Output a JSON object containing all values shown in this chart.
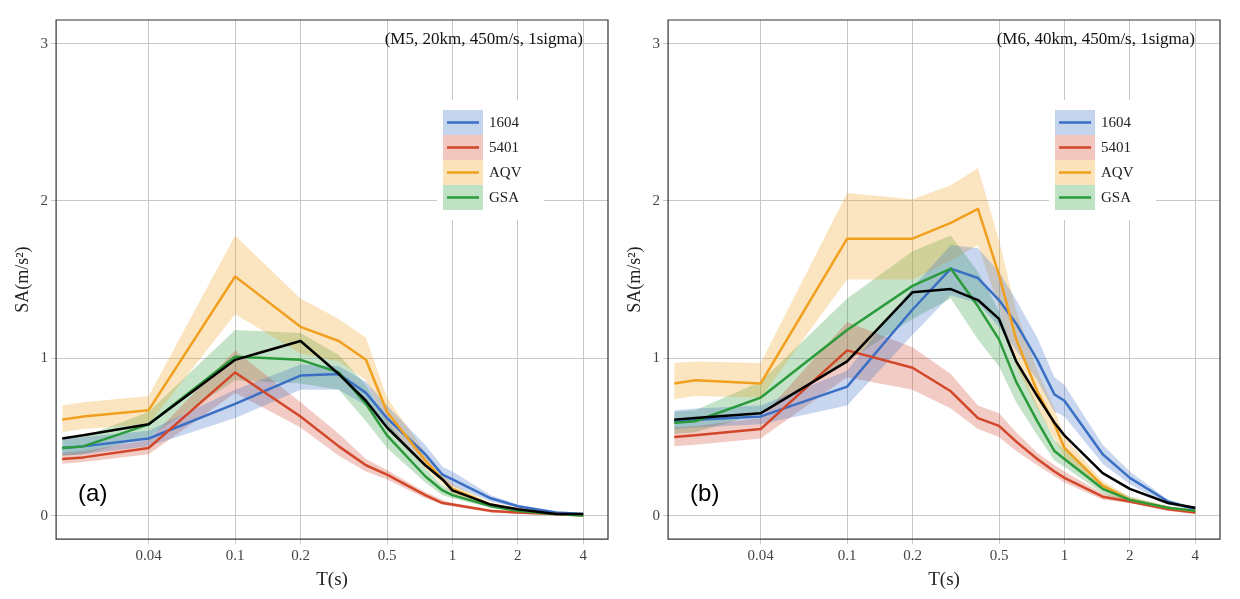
{
  "chart_data": [
    {
      "type": "line",
      "title": "(M5, 20km, 450m/s, 1sigma)",
      "xlabel": "T(s)",
      "ylabel": "SA(m/s²)",
      "annotations": [
        "(a)"
      ],
      "log": "x",
      "grid": true,
      "legend": "top right",
      "x": [
        0.016,
        0.02,
        0.04,
        0.1,
        0.2,
        0.3,
        0.4,
        0.5,
        0.75,
        0.9,
        1,
        1.5,
        2,
        3,
        4
      ],
      "xlim": [
        0.015,
        5.2
      ],
      "xticks": [
        0.04,
        0.1,
        0.2,
        0.5,
        1,
        2,
        4
      ],
      "ylim": [
        -0.15,
        3.15
      ],
      "yticks": [
        0,
        1,
        2,
        3
      ],
      "series": [
        {
          "name": "1604",
          "color": "#3a6fc4",
          "values": [
            0.43,
            0.44,
            0.49,
            0.71,
            0.89,
            0.9,
            0.78,
            0.62,
            0.39,
            0.26,
            0.23,
            0.11,
            0.06,
            0.02,
            0.01
          ],
          "upper": [
            0.49,
            0.5,
            0.54,
            0.8,
            0.96,
            0.95,
            0.85,
            0.7,
            0.45,
            0.31,
            0.28,
            0.13,
            0.07,
            0.02,
            0.01
          ],
          "lower": [
            0.38,
            0.39,
            0.44,
            0.62,
            0.8,
            0.8,
            0.7,
            0.55,
            0.34,
            0.22,
            0.19,
            0.09,
            0.05,
            0.01,
            0
          ]
        },
        {
          "name": "5401",
          "color": "#d2462a",
          "values": [
            0.36,
            0.37,
            0.43,
            0.91,
            0.63,
            0.44,
            0.32,
            0.26,
            0.13,
            0.08,
            0.07,
            0.03,
            0.02,
            0.01,
            0
          ],
          "upper": [
            0.4,
            0.41,
            0.48,
            1.05,
            0.72,
            0.52,
            0.36,
            0.29,
            0.15,
            0.1,
            0.08,
            0.04,
            0.02,
            0.01,
            0.01
          ],
          "lower": [
            0.33,
            0.34,
            0.39,
            0.78,
            0.56,
            0.38,
            0.28,
            0.23,
            0.11,
            0.07,
            0.06,
            0.02,
            0.01,
            0,
            0
          ]
        },
        {
          "name": "AQV",
          "color": "#f0a01e",
          "values": [
            0.61,
            0.63,
            0.67,
            1.52,
            1.2,
            1.11,
            0.99,
            0.66,
            0.35,
            0.23,
            0.17,
            0.07,
            0.04,
            null,
            null
          ],
          "upper": [
            0.7,
            0.72,
            0.76,
            1.78,
            1.38,
            1.25,
            1.13,
            0.75,
            0.4,
            0.27,
            0.2,
            0.08,
            0.05,
            0.02,
            0.01
          ],
          "lower": [
            0.53,
            0.55,
            0.58,
            1.28,
            1.03,
            0.98,
            0.86,
            0.58,
            0.3,
            0.2,
            0.14,
            0.06,
            0.03,
            0.01,
            0
          ]
        },
        {
          "name": "GSA",
          "color": "#2a9a3a",
          "values": [
            0.43,
            0.44,
            0.58,
            1.01,
            0.99,
            0.91,
            0.71,
            0.51,
            0.25,
            0.16,
            0.13,
            0.06,
            0.03,
            0.01,
            0
          ],
          "upper": [
            0.48,
            0.5,
            0.66,
            1.18,
            1.16,
            1.02,
            0.83,
            0.6,
            0.3,
            0.19,
            0.16,
            0.07,
            0.04,
            0.02,
            0.01
          ],
          "lower": [
            0.38,
            0.39,
            0.5,
            0.86,
            0.84,
            0.8,
            0.6,
            0.43,
            0.21,
            0.13,
            0.11,
            0.05,
            0.02,
            0.01,
            0
          ]
        },
        {
          "color": "#000000",
          "values": [
            0.49,
            0.51,
            0.58,
            0.99,
            1.11,
            0.9,
            0.73,
            0.56,
            0.32,
            0.23,
            0.16,
            0.07,
            0.04,
            0.01,
            0.01
          ]
        }
      ]
    },
    {
      "type": "line",
      "title": "(M6, 40km, 450m/s, 1sigma)",
      "xlabel": "T(s)",
      "ylabel": "SA(m/s²)",
      "annotations": [
        "(b)"
      ],
      "log": "x",
      "grid": true,
      "legend": "top right",
      "x": [
        0.016,
        0.02,
        0.04,
        0.1,
        0.2,
        0.3,
        0.4,
        0.5,
        0.6,
        0.75,
        0.9,
        1,
        1.5,
        2,
        3,
        4
      ],
      "xlim": [
        0.015,
        5.2
      ],
      "xticks": [
        0.04,
        0.1,
        0.2,
        0.5,
        1,
        2,
        4
      ],
      "ylim": [
        -0.15,
        3.15
      ],
      "yticks": [
        0,
        1,
        2,
        3
      ],
      "series": [
        {
          "name": "1604",
          "color": "#3a6fc4",
          "values": [
            0.6,
            0.61,
            0.63,
            0.82,
            1.31,
            1.57,
            1.51,
            1.37,
            1.22,
            0.99,
            0.77,
            0.73,
            0.39,
            0.24,
            0.09,
            0.04
          ],
          "upper": [
            0.67,
            0.68,
            0.7,
            0.92,
            1.45,
            1.72,
            1.7,
            1.55,
            1.37,
            1.13,
            0.88,
            0.83,
            0.45,
            0.28,
            0.1,
            0.05
          ],
          "lower": [
            0.55,
            0.56,
            0.58,
            0.7,
            1.15,
            1.4,
            1.35,
            1.2,
            1.05,
            0.86,
            0.66,
            0.63,
            0.33,
            0.2,
            0.07,
            0.03
          ]
        },
        {
          "name": "5401",
          "color": "#d2462a",
          "values": [
            0.5,
            0.51,
            0.55,
            1.05,
            0.94,
            0.79,
            0.62,
            0.57,
            0.47,
            0.36,
            0.28,
            0.24,
            0.12,
            0.09,
            0.04,
            0.02
          ],
          "upper": [
            0.56,
            0.57,
            0.62,
            1.23,
            1.07,
            0.9,
            0.7,
            0.65,
            0.53,
            0.4,
            0.32,
            0.28,
            0.14,
            0.1,
            0.05,
            0.02
          ],
          "lower": [
            0.44,
            0.45,
            0.49,
            0.88,
            0.8,
            0.68,
            0.55,
            0.5,
            0.41,
            0.32,
            0.25,
            0.21,
            0.1,
            0.08,
            0.03,
            0.01
          ]
        },
        {
          "name": "AQV",
          "color": "#f0a01e",
          "values": [
            0.84,
            0.86,
            0.84,
            1.76,
            1.76,
            1.86,
            1.95,
            1.53,
            1.12,
            0.79,
            0.58,
            0.43,
            0.19,
            0.1,
            0.05,
            0.03
          ],
          "upper": [
            0.97,
            0.98,
            0.97,
            2.05,
            2.01,
            2.1,
            2.21,
            1.75,
            1.3,
            0.92,
            0.68,
            0.5,
            0.22,
            0.12,
            0.06,
            0.03
          ],
          "lower": [
            0.74,
            0.76,
            0.75,
            1.5,
            1.5,
            1.62,
            1.72,
            1.32,
            0.95,
            0.68,
            0.49,
            0.37,
            0.16,
            0.08,
            0.04,
            0.02
          ]
        },
        {
          "name": "GSA",
          "color": "#2a9a3a",
          "values": [
            0.59,
            0.6,
            0.75,
            1.18,
            1.46,
            1.57,
            1.33,
            1.12,
            0.85,
            0.6,
            0.41,
            0.36,
            0.17,
            0.1,
            0.05,
            0.03
          ],
          "upper": [
            0.66,
            0.67,
            0.85,
            1.38,
            1.68,
            1.78,
            1.55,
            1.3,
            1,
            0.7,
            0.48,
            0.42,
            0.2,
            0.12,
            0.06,
            0.03
          ],
          "lower": [
            0.52,
            0.53,
            0.65,
            0.98,
            1.25,
            1.38,
            1.12,
            0.95,
            0.72,
            0.51,
            0.35,
            0.31,
            0.14,
            0.08,
            0.04,
            0.02
          ]
        },
        {
          "color": "#000000",
          "values": [
            0.61,
            0.62,
            0.65,
            0.98,
            1.42,
            1.44,
            1.37,
            1.25,
            0.98,
            0.76,
            0.59,
            0.51,
            0.27,
            0.17,
            0.08,
            0.05
          ]
        }
      ]
    }
  ]
}
